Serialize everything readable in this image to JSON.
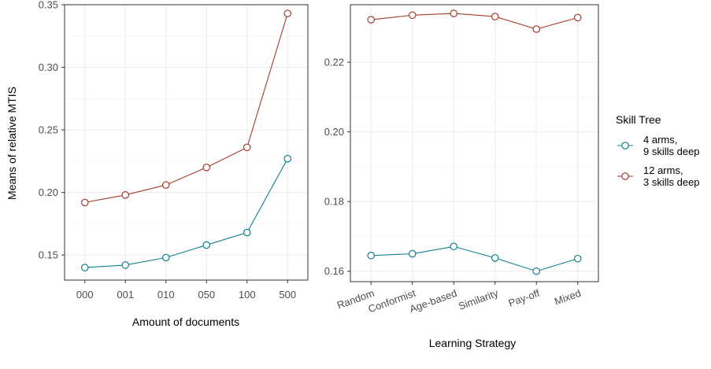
{
  "y_axis_title": "Means of relative MTIS",
  "legend": {
    "title": "Skill Tree",
    "entries": [
      {
        "line1": "4 arms,",
        "line2": "9 skills deep",
        "color": "#0e7f8f"
      },
      {
        "line1": "12 arms,",
        "line2": "3 skills deep",
        "color": "#a63a2a"
      }
    ]
  },
  "chart_data": [
    {
      "type": "line",
      "xlabel": "Amount of documents",
      "ylabel": "Means of relative MTIS",
      "categories": [
        "000",
        "001",
        "010",
        "050",
        "100",
        "500"
      ],
      "ylim": [
        0.13,
        0.35
      ],
      "yticks": [
        "0.15",
        "0.20",
        "0.25",
        "0.30",
        "0.35"
      ],
      "grid": true,
      "series": [
        {
          "name": "4 arms, 9 skills deep",
          "color": "#0e7f8f",
          "values": [
            0.14,
            0.142,
            0.148,
            0.158,
            0.168,
            0.227
          ]
        },
        {
          "name": "12 arms, 3 skills deep",
          "color": "#a63a2a",
          "values": [
            0.192,
            0.198,
            0.206,
            0.22,
            0.236,
            0.343
          ]
        }
      ]
    },
    {
      "type": "line",
      "xlabel": "Learning Strategy",
      "ylabel": "",
      "categories": [
        "Random",
        "Conformist",
        "Age-based",
        "Similarity",
        "Pay-off",
        "Mixed"
      ],
      "ylim": [
        0.157,
        0.2365
      ],
      "yticks": [
        "0.16",
        "0.18",
        "0.20",
        "0.22"
      ],
      "grid": true,
      "series": [
        {
          "name": "4 arms, 9 skills deep",
          "color": "#0e7f8f",
          "values": [
            0.1645,
            0.165,
            0.1671,
            0.1638,
            0.16,
            0.1636
          ]
        },
        {
          "name": "12 arms, 3 skills deep",
          "color": "#a63a2a",
          "values": [
            0.2322,
            0.2335,
            0.234,
            0.2331,
            0.2295,
            0.2328
          ]
        }
      ]
    }
  ]
}
